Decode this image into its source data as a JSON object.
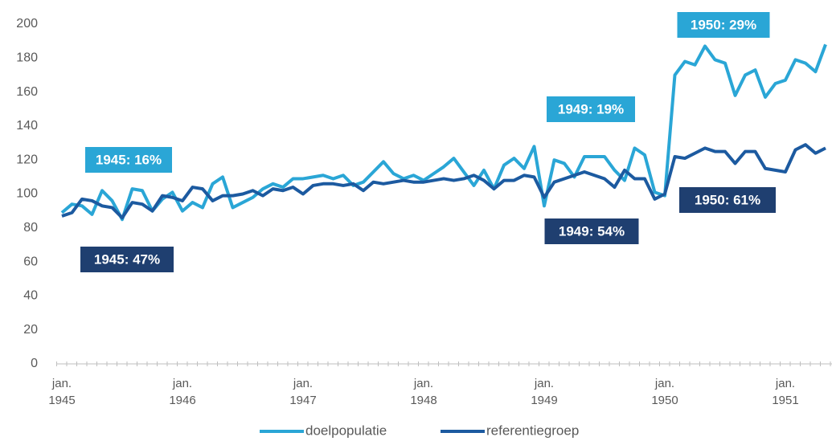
{
  "chart_data": {
    "type": "line",
    "categories": [
      "jan. 1945",
      null,
      null,
      null,
      null,
      null,
      null,
      null,
      null,
      null,
      null,
      null,
      "jan. 1946",
      null,
      null,
      null,
      null,
      null,
      null,
      null,
      null,
      null,
      null,
      null,
      "jan. 1947",
      null,
      null,
      null,
      null,
      null,
      null,
      null,
      null,
      null,
      null,
      null,
      "jan. 1948",
      null,
      null,
      null,
      null,
      null,
      null,
      null,
      null,
      null,
      null,
      null,
      "jan. 1949",
      null,
      null,
      null,
      null,
      null,
      null,
      null,
      null,
      null,
      null,
      null,
      "jan. 1950",
      null,
      null,
      null,
      null,
      null,
      null,
      null,
      null,
      null,
      null,
      null,
      "jan. 1951",
      null,
      null,
      null,
      null
    ],
    "series": [
      {
        "name": "doelpopulatie",
        "color": "#2aa6d6",
        "values": [
          89,
          94,
          93,
          88,
          102,
          96,
          85,
          103,
          102,
          90,
          97,
          101,
          90,
          95,
          92,
          106,
          110,
          92,
          95,
          98,
          103,
          106,
          104,
          109,
          109,
          110,
          111,
          109,
          111,
          105,
          107,
          113,
          119,
          112,
          109,
          111,
          108,
          112,
          116,
          121,
          113,
          105,
          114,
          103,
          117,
          121,
          115,
          128,
          93,
          120,
          118,
          110,
          122,
          122,
          122,
          114,
          108,
          127,
          123,
          101,
          99,
          170,
          178,
          176,
          187,
          179,
          177,
          158,
          170,
          173,
          157,
          165,
          167,
          179,
          177,
          172,
          188
        ]
      },
      {
        "name": "referentiegroep",
        "color": "#1c5aa0",
        "values": [
          87,
          89,
          97,
          96,
          93,
          92,
          86,
          95,
          94,
          90,
          99,
          98,
          96,
          104,
          103,
          96,
          99,
          99,
          100,
          102,
          99,
          103,
          102,
          104,
          100,
          105,
          106,
          106,
          105,
          106,
          102,
          107,
          106,
          107,
          108,
          107,
          107,
          108,
          109,
          108,
          109,
          111,
          108,
          103,
          108,
          108,
          111,
          110,
          98,
          107,
          109,
          111,
          113,
          111,
          109,
          104,
          114,
          109,
          109,
          97,
          100,
          122,
          121,
          124,
          127,
          125,
          125,
          118,
          125,
          125,
          115,
          114,
          113,
          126,
          129,
          124,
          127
        ]
      }
    ],
    "ylim": [
      0,
      200
    ],
    "yticks": [
      0,
      20,
      40,
      60,
      80,
      100,
      120,
      140,
      160,
      180,
      200
    ],
    "grid": false,
    "legend": "bottom",
    "annotations": [
      {
        "text": "1945: 16%",
        "color": "#2aa6d6"
      },
      {
        "text": "1945: 47%",
        "color": "#1f3f70"
      },
      {
        "text": "1949: 19%",
        "color": "#2aa6d6"
      },
      {
        "text": "1949: 54%",
        "color": "#1f3f70"
      },
      {
        "text": "1950: 29%",
        "color": "#2aa6d6"
      },
      {
        "text": "1950: 61%",
        "color": "#1f3f70"
      }
    ]
  }
}
